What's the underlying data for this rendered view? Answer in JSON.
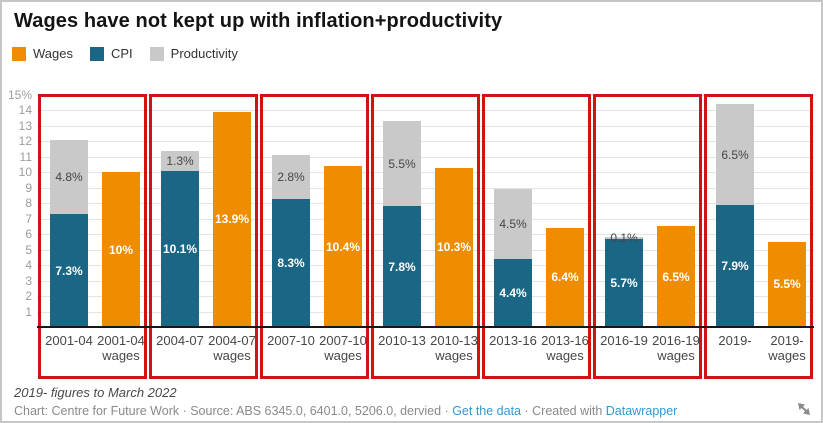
{
  "title": "Wages have not kept up with inflation+productivity",
  "legend": {
    "items": [
      {
        "label": "Wages",
        "color": "#f08c00"
      },
      {
        "label": "CPI",
        "color": "#1a6684"
      },
      {
        "label": "Productivity",
        "color": "#c9c9c9"
      }
    ]
  },
  "chart_data": {
    "type": "bar",
    "variant": "per period: stacked column (CPI + Productivity) paired with separate Wages column",
    "title": "Wages have not kept up with inflation+productivity",
    "categories": [
      "2001-04",
      "2004-07",
      "2007-10",
      "2010-13",
      "2013-16",
      "2016-19",
      "2019-"
    ],
    "wages_tick_second_line": "wages",
    "series": [
      {
        "name": "CPI",
        "color": "#1a6684",
        "values": [
          7.3,
          10.1,
          8.3,
          7.8,
          4.4,
          5.7,
          7.9
        ],
        "labels": [
          "7.3%",
          "10.1%",
          "8.3%",
          "7.8%",
          "4.4%",
          "5.7%",
          "7.9%"
        ],
        "label_style": "white-bold"
      },
      {
        "name": "Productivity",
        "color": "#c9c9c9",
        "values": [
          4.8,
          1.3,
          2.8,
          5.5,
          4.5,
          0.1,
          6.5
        ],
        "labels": [
          "4.8%",
          "1.3%",
          "2.8%",
          "5.5%",
          "4.5%",
          "0.1%",
          "6.5%"
        ],
        "label_style": "dark"
      },
      {
        "name": "Wages",
        "color": "#f08c00",
        "values": [
          10,
          13.9,
          10.4,
          10.3,
          6.4,
          6.5,
          5.5
        ],
        "labels": [
          "10%",
          "13.9%",
          "10.4%",
          "10.3%",
          "6.4%",
          "6.5%",
          "5.5%"
        ],
        "label_style": "white-bold"
      }
    ],
    "ylim": [
      0,
      15
    ],
    "y_ticks": [
      1,
      2,
      3,
      4,
      5,
      6,
      7,
      8,
      9,
      10,
      11,
      12,
      13,
      14,
      15
    ],
    "y_top_tick_label": "15%",
    "grid": true,
    "legend_position": "top-left",
    "annotations": {
      "description": "red rectangle drawn around each period pair",
      "count": 7,
      "color": "#d01212"
    }
  },
  "footer": {
    "note": "2019- figures to March 2022",
    "byline_prefix": "Chart: Centre for Future Work · Source: ABS 6345.0, 6401.0, 5206.0, dervied · ",
    "get_data_link": "Get the data",
    "byline_mid": " · Created with ",
    "datawrapper_link": "Datawrapper",
    "link_color": "#3399cc"
  },
  "icons": {
    "resize": "diagonal-resize-arrow"
  }
}
